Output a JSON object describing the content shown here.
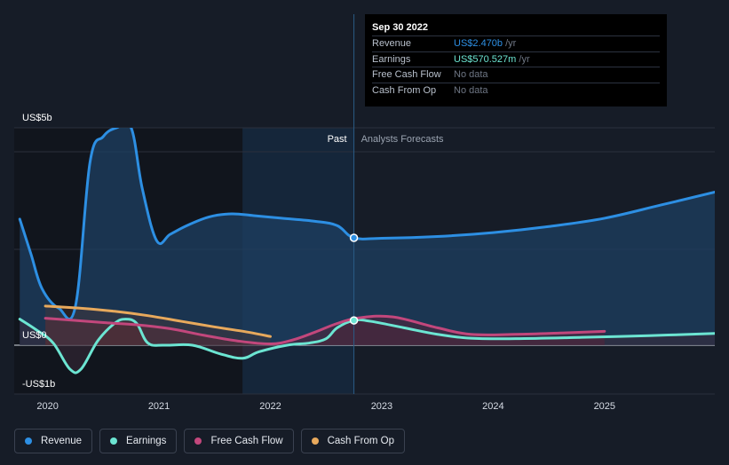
{
  "colors": {
    "revenue": "#2d8fe3",
    "earnings": "#6ce5d2",
    "free_cash_flow": "#c2477c",
    "cash_from_op": "#e8a95c",
    "background": "#161c27",
    "past_shade": "#11151d"
  },
  "tooltip": {
    "date": "Sep 30 2022",
    "rows": [
      {
        "name": "Revenue",
        "value": "US$2.470b",
        "unit": " /yr",
        "color": "#2d8fe3"
      },
      {
        "name": "Earnings",
        "value": "US$570.527m",
        "unit": " /yr",
        "color": "#6ce5d2"
      },
      {
        "name": "Free Cash Flow",
        "value": "No data",
        "unit": "",
        "color": "#6e7684"
      },
      {
        "name": "Cash From Op",
        "value": "No data",
        "unit": "",
        "color": "#6e7684"
      }
    ]
  },
  "labels": {
    "past": "Past",
    "forecast": "Analysts Forecasts"
  },
  "legend": [
    {
      "label": "Revenue",
      "color": "#2d8fe3"
    },
    {
      "label": "Earnings",
      "color": "#6ce5d2"
    },
    {
      "label": "Free Cash Flow",
      "color": "#c2477c"
    },
    {
      "label": "Cash From Op",
      "color": "#e8a95c"
    }
  ],
  "chart_data": {
    "type": "line",
    "title": "",
    "xlabel": "",
    "ylabel": "",
    "x_ticks": [
      "2020",
      "2021",
      "2022",
      "2023",
      "2024",
      "2025"
    ],
    "y_tick_labels": [
      {
        "value": 5,
        "label": "US$5b"
      },
      {
        "value": 0,
        "label": "US$0"
      },
      {
        "value": -1,
        "label": "-US$1b"
      }
    ],
    "ylim": [
      -1,
      5
    ],
    "xlim": [
      2019.7,
      2025.99
    ],
    "past_shade_start": 2021.75,
    "divider_x": 2022.75,
    "grid": true,
    "legend_position": "bottom-left",
    "series": [
      {
        "name": "Revenue",
        "key": "revenue",
        "area": true,
        "points": [
          [
            2019.75,
            2.9
          ],
          [
            2019.85,
            2.1
          ],
          [
            2019.95,
            1.3
          ],
          [
            2020.1,
            0.85
          ],
          [
            2020.25,
            0.9
          ],
          [
            2020.38,
            4.2
          ],
          [
            2020.5,
            4.8
          ],
          [
            2020.62,
            5.0
          ],
          [
            2020.75,
            5.0
          ],
          [
            2020.85,
            3.6
          ],
          [
            2020.98,
            2.4
          ],
          [
            2021.1,
            2.55
          ],
          [
            2021.25,
            2.75
          ],
          [
            2021.45,
            2.95
          ],
          [
            2021.65,
            3.02
          ],
          [
            2021.85,
            2.98
          ],
          [
            2022.1,
            2.92
          ],
          [
            2022.4,
            2.85
          ],
          [
            2022.6,
            2.75
          ],
          [
            2022.75,
            2.47
          ],
          [
            2023.0,
            2.46
          ],
          [
            2023.5,
            2.5
          ],
          [
            2024.0,
            2.59
          ],
          [
            2024.5,
            2.73
          ],
          [
            2025.0,
            2.92
          ],
          [
            2025.5,
            3.22
          ],
          [
            2025.99,
            3.52
          ]
        ]
      },
      {
        "name": "Earnings",
        "key": "earnings",
        "area": true,
        "points": [
          [
            2019.75,
            0.6
          ],
          [
            2019.9,
            0.35
          ],
          [
            2020.05,
            0.05
          ],
          [
            2020.2,
            -0.55
          ],
          [
            2020.3,
            -0.55
          ],
          [
            2020.45,
            0.1
          ],
          [
            2020.6,
            0.5
          ],
          [
            2020.7,
            0.6
          ],
          [
            2020.8,
            0.5
          ],
          [
            2020.9,
            0.05
          ],
          [
            2021.05,
            0.0
          ],
          [
            2021.3,
            0.0
          ],
          [
            2021.55,
            -0.2
          ],
          [
            2021.75,
            -0.3
          ],
          [
            2021.9,
            -0.15
          ],
          [
            2022.15,
            0.0
          ],
          [
            2022.35,
            0.05
          ],
          [
            2022.5,
            0.15
          ],
          [
            2022.6,
            0.4
          ],
          [
            2022.75,
            0.57
          ],
          [
            2022.9,
            0.55
          ],
          [
            2023.2,
            0.4
          ],
          [
            2023.5,
            0.25
          ],
          [
            2023.8,
            0.16
          ],
          [
            2024.2,
            0.15
          ],
          [
            2024.8,
            0.18
          ],
          [
            2025.4,
            0.22
          ],
          [
            2025.99,
            0.27
          ]
        ]
      },
      {
        "name": "Free Cash Flow",
        "key": "free_cash_flow",
        "area": true,
        "points": [
          [
            2019.98,
            0.62
          ],
          [
            2020.2,
            0.58
          ],
          [
            2020.5,
            0.52
          ],
          [
            2020.8,
            0.47
          ],
          [
            2021.1,
            0.38
          ],
          [
            2021.4,
            0.23
          ],
          [
            2021.7,
            0.1
          ],
          [
            2022.0,
            0.03
          ],
          [
            2022.2,
            0.12
          ],
          [
            2022.4,
            0.3
          ],
          [
            2022.6,
            0.5
          ],
          [
            2022.8,
            0.63
          ],
          [
            2023.1,
            0.65
          ],
          [
            2023.5,
            0.4
          ],
          [
            2023.8,
            0.25
          ],
          [
            2024.2,
            0.25
          ],
          [
            2024.6,
            0.28
          ],
          [
            2025.0,
            0.32
          ]
        ]
      },
      {
        "name": "Cash From Op",
        "key": "cash_from_op",
        "area": true,
        "points": [
          [
            2019.98,
            0.9
          ],
          [
            2020.3,
            0.85
          ],
          [
            2020.6,
            0.78
          ],
          [
            2020.9,
            0.68
          ],
          [
            2021.2,
            0.55
          ],
          [
            2021.5,
            0.42
          ],
          [
            2021.8,
            0.3
          ],
          [
            2022.0,
            0.2
          ]
        ]
      }
    ],
    "markers": [
      {
        "series": "revenue",
        "x": 2022.75,
        "y": 2.47
      },
      {
        "series": "earnings",
        "x": 2022.75,
        "y": 0.57
      }
    ]
  }
}
